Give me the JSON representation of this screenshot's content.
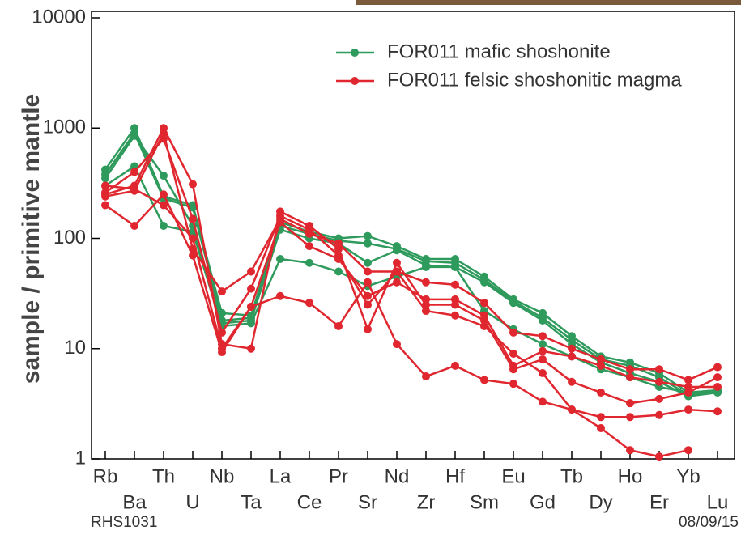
{
  "chart_data": {
    "type": "line",
    "y_label": "sample / primitive mantle",
    "categories": [
      "Rb",
      "Ba",
      "Th",
      "U",
      "Nb",
      "Ta",
      "La",
      "Ce",
      "Pr",
      "Sr",
      "Nd",
      "Zr",
      "Hf",
      "Sm",
      "Eu",
      "Gd",
      "Tb",
      "Dy",
      "Ho",
      "Er",
      "Yb",
      "Lu"
    ],
    "series": [
      {
        "name": "FOR011 mafic shoshonite",
        "color": "#2e9a5c",
        "samples": [
          [
            420,
            1000,
            240,
            200,
            21,
            20,
            140,
            115,
            100,
            105,
            85,
            65,
            65,
            45,
            28,
            21,
            13,
            8.5,
            7.5,
            6,
            4,
            4.2
          ],
          [
            380,
            900,
            230,
            190,
            18,
            19,
            130,
            110,
            95,
            90,
            80,
            62,
            60,
            42,
            27,
            19,
            12,
            8,
            7,
            5.5,
            3.8,
            4.1
          ],
          [
            350,
            850,
            370,
            130,
            17,
            18,
            120,
            100,
            90,
            60,
            78,
            57,
            55,
            40,
            26,
            18,
            11,
            7.5,
            6,
            5,
            3.7,
            4
          ],
          [
            300,
            450,
            130,
            115,
            16,
            17,
            65,
            60,
            50,
            37,
            45,
            55,
            55,
            22,
            15,
            11,
            8.5,
            6.5,
            5.5,
            4.5,
            4,
            4.2
          ]
        ]
      },
      {
        "name": "FOR011 felsic shoshonitic magma",
        "color": "#e0262e",
        "samples": [
          [
            250,
            300,
            1000,
            310,
            11,
            10,
            175,
            130,
            80,
            15,
            60,
            25,
            25,
            18,
            6.5,
            8,
            5,
            4,
            3.2,
            3.5,
            4,
            5.5
          ],
          [
            200,
            130,
            250,
            70,
            9.3,
            24,
            30,
            26,
            16,
            40,
            11,
            5.6,
            7,
            5.2,
            4.8,
            3.3,
            2.8,
            2.4,
            2.4,
            2.5,
            2.8,
            2.7
          ],
          [
            260,
            400,
            800,
            150,
            14,
            35,
            160,
            120,
            70,
            25,
            50,
            22,
            20,
            16,
            9,
            6,
            2.8,
            1.9,
            1.2,
            1.05,
            1.2,
            null
          ],
          [
            240,
            270,
            900,
            80,
            33,
            50,
            150,
            110,
            90,
            50,
            50,
            40,
            38,
            26,
            14,
            13,
            10,
            8,
            6.5,
            6.5,
            5.2,
            6.8
          ],
          [
            300,
            280,
            200,
            100,
            10,
            24,
            140,
            85,
            65,
            30,
            40,
            28,
            28,
            20,
            7,
            9.5,
            8.5,
            7,
            5.5,
            5,
            4.5,
            4.5
          ]
        ]
      }
    ],
    "ylim": [
      1,
      10000
    ],
    "yticks": [
      1,
      10,
      100,
      1000,
      10000
    ],
    "log_y": true,
    "legend": "upper right",
    "footer_left": "RHS1031",
    "footer_right": "08/09/15"
  }
}
